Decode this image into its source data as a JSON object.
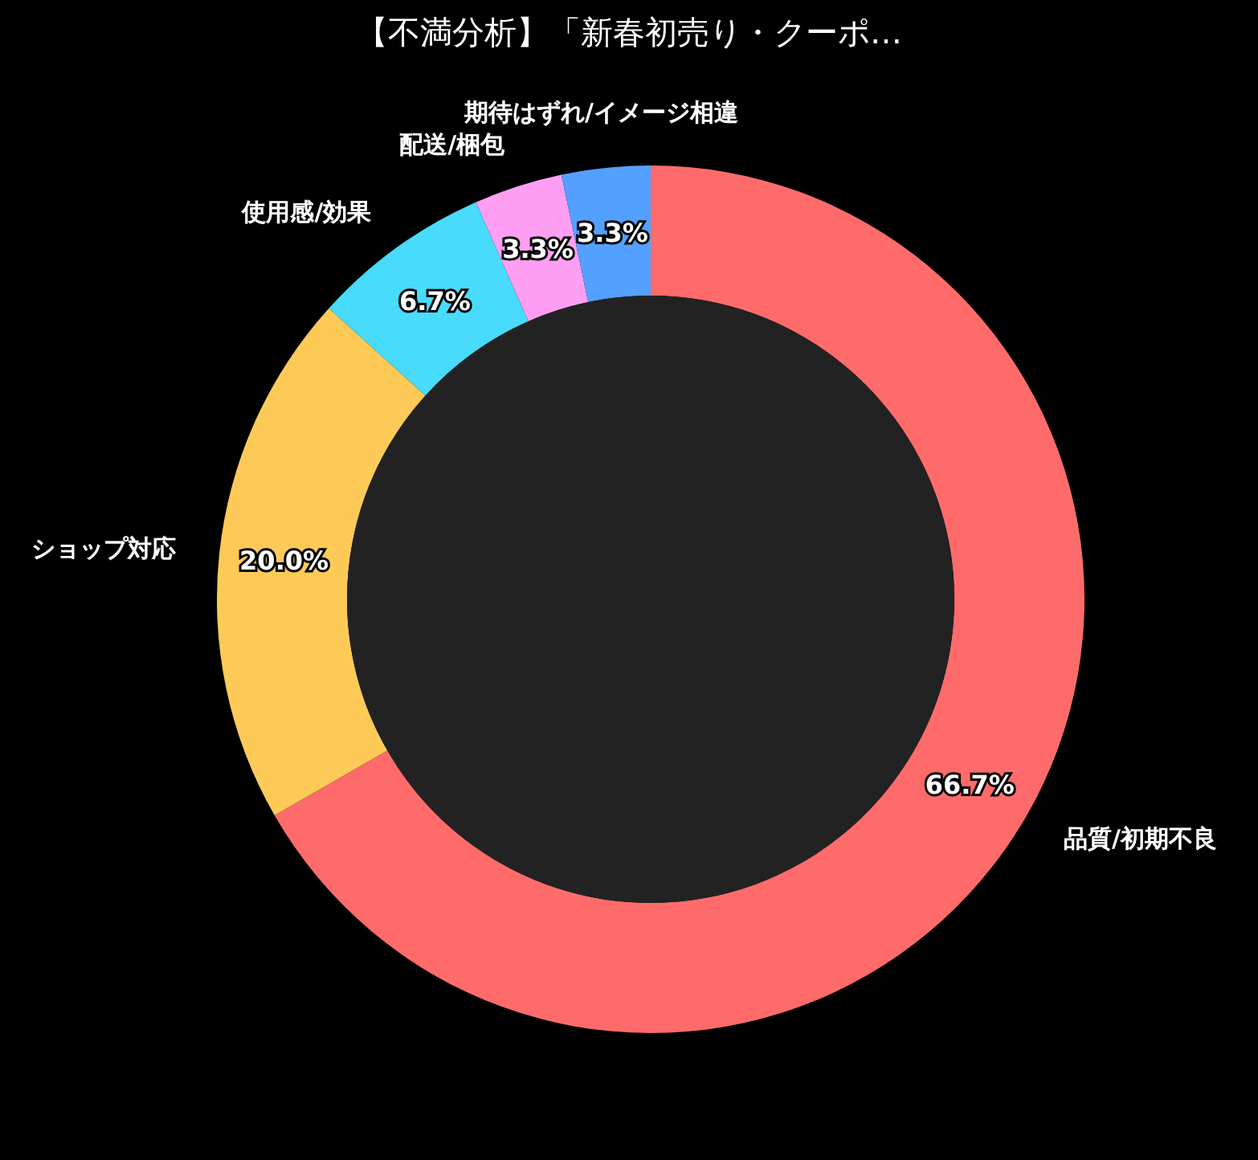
{
  "chart_data": {
    "type": "donut",
    "title": "【不満分析】「新春初売り・クーポ…",
    "categories": [
      "品質/初期不良",
      "ショップ対応",
      "使用感/効果",
      "配送/梱包",
      "期待はずれ/イメージ相違"
    ],
    "values": [
      66.7,
      20.0,
      6.7,
      3.3,
      3.3
    ],
    "colors": [
      "#ff6b6b",
      "#feca57",
      "#48dbfb",
      "#ff9ff3",
      "#54a0ff"
    ],
    "value_labels": [
      "66.7%",
      "20.0%",
      "6.7%",
      "3.3%",
      "3.3%"
    ]
  }
}
